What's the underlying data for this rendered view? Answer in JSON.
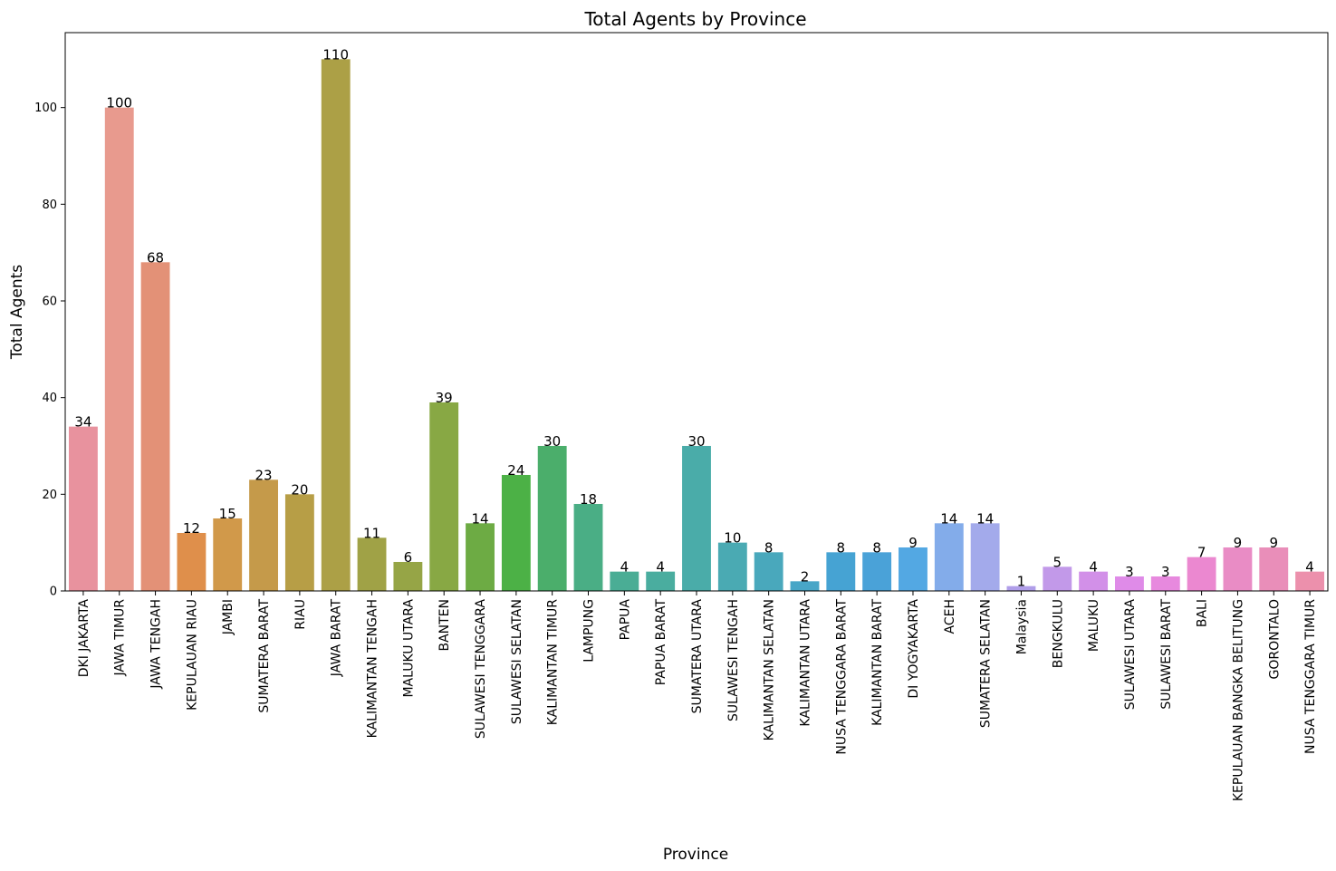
{
  "chart_data": {
    "type": "bar",
    "title": "Total Agents by Province",
    "xlabel": "Province",
    "ylabel": "Total Agents",
    "ylim": [
      0,
      115.5
    ],
    "yticks": [
      0,
      20,
      40,
      60,
      80,
      100
    ],
    "grid": false,
    "categories": [
      "DKI JAKARTA",
      "JAWA TIMUR",
      "JAWA TENGAH",
      "KEPULAUAN RIAU",
      "JAMBI",
      "SUMATERA BARAT",
      "RIAU",
      "JAWA BARAT",
      "KALIMANTAN TENGAH",
      "MALUKU UTARA",
      "BANTEN",
      "SULAWESI TENGGARA",
      "SULAWESI SELATAN",
      "KALIMANTAN TIMUR",
      "LAMPUNG",
      "PAPUA",
      "PAPUA BARAT",
      "SUMATERA UTARA",
      "SULAWESI TENGAH",
      "KALIMANTAN SELATAN",
      "KALIMANTAN UTARA",
      "NUSA TENGGARA BARAT",
      "KALIMANTAN BARAT",
      "DI YOGYAKARTA",
      "ACEH",
      "SUMATERA SELATAN",
      "Malaysia",
      "BENGKULU",
      "MALUKU",
      "SULAWESI UTARA",
      "SULAWESI BARAT",
      "BALI",
      "KEPULAUAN BANGKA BELITUNG",
      "GORONTALO",
      "NUSA TENGGARA TIMUR"
    ],
    "values": [
      34,
      100,
      68,
      12,
      15,
      23,
      20,
      110,
      11,
      6,
      39,
      14,
      24,
      30,
      18,
      4,
      4,
      30,
      10,
      8,
      2,
      8,
      8,
      9,
      14,
      14,
      1,
      5,
      4,
      3,
      3,
      7,
      9,
      9,
      4
    ],
    "colors": [
      "#e8929e",
      "#e89a8e",
      "#e39177",
      "#df8f4b",
      "#d1994a",
      "#c59a4a",
      "#b79e46",
      "#aca046",
      "#a0a246",
      "#96a546",
      "#88a844",
      "#6dab44",
      "#4cb146",
      "#4bae6b",
      "#4aae85",
      "#4aad95",
      "#4aad9f",
      "#4aaca9",
      "#4aaab3",
      "#49a8bc",
      "#48a6c7",
      "#46a3d3",
      "#4aa2d8",
      "#53a8e3",
      "#83acea",
      "#a3aaeb",
      "#b09ee9",
      "#c299e9",
      "#d290e8",
      "#df8be8",
      "#e789de",
      "#eb88d0",
      "#e98cc5",
      "#e98eb9",
      "#ec90ac"
    ]
  }
}
